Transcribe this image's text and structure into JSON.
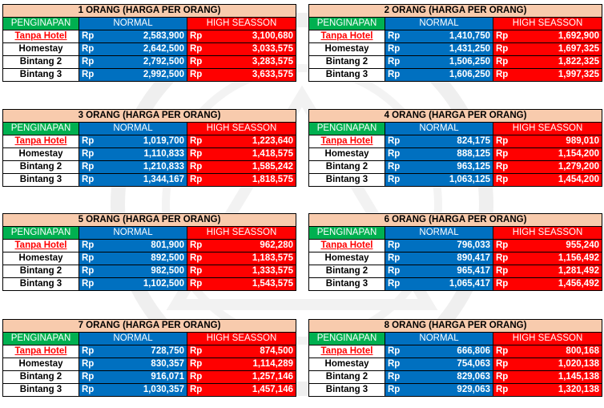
{
  "headers": {
    "penginapan": "PENGINAPAN",
    "normal": "NORMAL",
    "high": "HIGH SEASSON",
    "currency": "Rp"
  },
  "colors": {
    "title_bg": "#f8cbad",
    "penginapan_bg": "#00b050",
    "normal_bg": "#0070c0",
    "high_bg": "#ff0000"
  },
  "tables": [
    {
      "title": "1 ORANG (HARGA PER ORANG)",
      "rows": [
        {
          "name": "Tanpa Hotel",
          "normal": "2,583,900",
          "high": "3,100,680"
        },
        {
          "name": "Homestay",
          "normal": "2,642,500",
          "high": "3,033,575"
        },
        {
          "name": "Bintang 2",
          "normal": "2,792,500",
          "high": "3,283,575"
        },
        {
          "name": "Bintang 3",
          "normal": "2,992,500",
          "high": "3,633,575"
        }
      ]
    },
    {
      "title": "2 ORANG (HARGA PER ORANG)",
      "rows": [
        {
          "name": "Tanpa Hotel",
          "normal": "1,410,750",
          "high": "1,692,900"
        },
        {
          "name": "Homestay",
          "normal": "1,431,250",
          "high": "1,697,325"
        },
        {
          "name": "Bintang 2",
          "normal": "1,506,250",
          "high": "1,822,325"
        },
        {
          "name": "Bintang 3",
          "normal": "1,606,250",
          "high": "1,997,325"
        }
      ]
    },
    {
      "title": "3 ORANG (HARGA PER ORANG)",
      "rows": [
        {
          "name": "Tanpa Hotel",
          "normal": "1,019,700",
          "high": "1,223,640"
        },
        {
          "name": "Homestay",
          "normal": "1,110,833",
          "high": "1,418,575"
        },
        {
          "name": "Bintang 2",
          "normal": "1,210,833",
          "high": "1,585,242"
        },
        {
          "name": "Bintang 3",
          "normal": "1,344,167",
          "high": "1,818,575"
        }
      ]
    },
    {
      "title": "4 ORANG (HARGA PER ORANG)",
      "rows": [
        {
          "name": "Tanpa Hotel",
          "normal": "824,175",
          "high": "989,010"
        },
        {
          "name": "Homestay",
          "normal": "888,125",
          "high": "1,154,200"
        },
        {
          "name": "Bintang 2",
          "normal": "963,125",
          "high": "1,279,200"
        },
        {
          "name": "Bintang 3",
          "normal": "1,063,125",
          "high": "1,454,200"
        }
      ]
    },
    {
      "title": "5 ORANG (HARGA PER ORANG)",
      "rows": [
        {
          "name": "Tanpa Hotel",
          "normal": "801,900",
          "high": "962,280"
        },
        {
          "name": "Homestay",
          "normal": "892,500",
          "high": "1,183,575"
        },
        {
          "name": "Bintang 2",
          "normal": "982,500",
          "high": "1,333,575"
        },
        {
          "name": "Bintang 3",
          "normal": "1,102,500",
          "high": "1,543,575"
        }
      ]
    },
    {
      "title": "6 ORANG (HARGA PER ORANG)",
      "rows": [
        {
          "name": "Tanpa Hotel",
          "normal": "796,033",
          "high": "955,240"
        },
        {
          "name": "Homestay",
          "normal": "890,417",
          "high": "1,156,492"
        },
        {
          "name": "Bintang 2",
          "normal": "965,417",
          "high": "1,281,492"
        },
        {
          "name": "Bintang 3",
          "normal": "1,065,417",
          "high": "1,456,492"
        }
      ]
    },
    {
      "title": "7 ORANG (HARGA PER ORANG)",
      "rows": [
        {
          "name": "Tanpa Hotel",
          "normal": "728,750",
          "high": "874,500"
        },
        {
          "name": "Homestay",
          "normal": "830,357",
          "high": "1,114,289"
        },
        {
          "name": "Bintang 2",
          "normal": "916,071",
          "high": "1,257,146"
        },
        {
          "name": "Bintang 3",
          "normal": "1,030,357",
          "high": "1,457,146"
        }
      ]
    },
    {
      "title": "8 ORANG (HARGA PER ORANG)",
      "rows": [
        {
          "name": "Tanpa Hotel",
          "normal": "666,806",
          "high": "800,168"
        },
        {
          "name": "Homestay",
          "normal": "754,063",
          "high": "1,020,138"
        },
        {
          "name": "Bintang 2",
          "normal": "829,063",
          "high": "1,145,138"
        },
        {
          "name": "Bintang 3",
          "normal": "929,063",
          "high": "1,320,138"
        }
      ]
    }
  ]
}
